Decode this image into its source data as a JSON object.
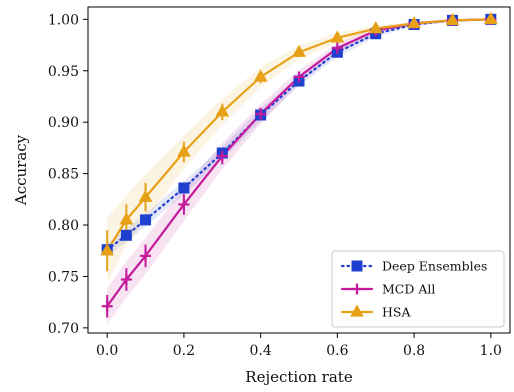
{
  "chart_data": {
    "type": "line",
    "title": "",
    "xlabel": "Rejection rate",
    "ylabel": "Accuracy",
    "xlim": [
      -0.05,
      1.05
    ],
    "ylim": [
      0.695,
      1.012
    ],
    "xticks": [
      0.0,
      0.2,
      0.4,
      0.6,
      0.8,
      1.0
    ],
    "xtick_labels": [
      "0.0",
      "0.2",
      "0.4",
      "0.6",
      "0.8",
      "1.0"
    ],
    "yticks": [
      0.7,
      0.75,
      0.8,
      0.85,
      0.9,
      0.95,
      1.0
    ],
    "ytick_labels": [
      "0.70",
      "0.75",
      "0.80",
      "0.85",
      "0.90",
      "0.95",
      "1.00"
    ],
    "grid": false,
    "legend_position": "bottom-right",
    "x": [
      0.0,
      0.05,
      0.1,
      0.2,
      0.3,
      0.4,
      0.5,
      0.6,
      0.7,
      0.8,
      0.9,
      1.0
    ],
    "series": [
      {
        "name": "Deep Ensembles",
        "color": "#1f3fcf",
        "linestyle": "dotted",
        "marker": "square",
        "values": [
          0.776,
          0.79,
          0.805,
          0.836,
          0.87,
          0.907,
          0.94,
          0.968,
          0.986,
          0.995,
          0.999,
          1.0
        ],
        "errors": [
          0.004,
          0.004,
          0.004,
          0.004,
          0.004,
          0.004,
          0.003,
          0.003,
          0.002,
          0.001,
          0.001,
          0.0
        ]
      },
      {
        "name": "MCD All",
        "color": "#c41a9c",
        "linestyle": "solid",
        "marker": "plus",
        "values": [
          0.721,
          0.747,
          0.77,
          0.82,
          0.867,
          0.908,
          0.944,
          0.972,
          0.989,
          0.996,
          0.999,
          1.0
        ],
        "errors": [
          0.011,
          0.011,
          0.011,
          0.01,
          0.008,
          0.006,
          0.004,
          0.003,
          0.002,
          0.001,
          0.001,
          0.0
        ]
      },
      {
        "name": "HSA",
        "color": "#e6a116",
        "linestyle": "solid",
        "marker": "triangle",
        "values": [
          0.775,
          0.805,
          0.827,
          0.871,
          0.91,
          0.944,
          0.968,
          0.982,
          0.991,
          0.996,
          0.999,
          1.0
        ],
        "errors": [
          0.02,
          0.015,
          0.014,
          0.01,
          0.008,
          0.006,
          0.004,
          0.003,
          0.002,
          0.001,
          0.0,
          0.0
        ]
      }
    ]
  }
}
